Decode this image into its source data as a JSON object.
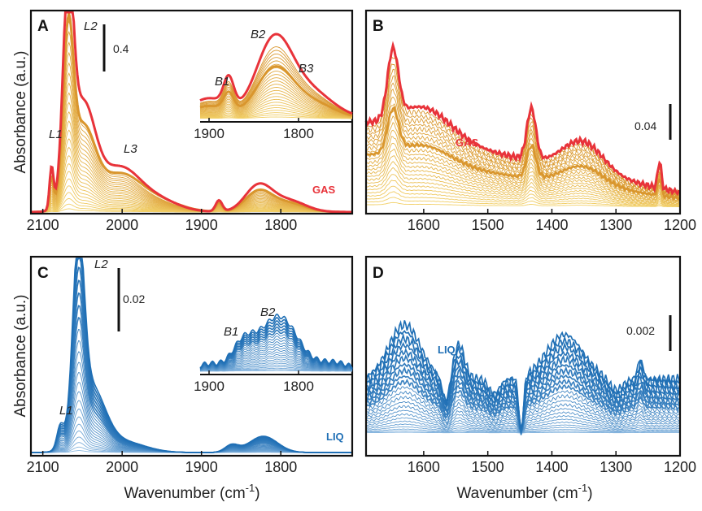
{
  "chart_data": [
    {
      "panel": "A",
      "type": "line",
      "xlabel": "",
      "ylabel": "Absorbance (a.u.)",
      "xlim": [
        2115,
        1710
      ],
      "xticks": [
        "2100",
        "2000",
        "1900",
        "1800"
      ],
      "scale_bar": "0.4",
      "tag": "GAS",
      "tag_color": "#e8333a",
      "colors": {
        "final": "#e8333a",
        "mid": "#d9962e",
        "early": "#f3d36b"
      },
      "peaks": [
        "L1",
        "L2",
        "L3"
      ],
      "main_peak_wavenumbers": {
        "L1": 2089,
        "L2": 2068,
        "L3": 2015,
        "bridge": 1828
      },
      "n_spectra": 24,
      "inset": {
        "xlim": [
          1910,
          1740
        ],
        "xticks": [
          "1900",
          "1800"
        ],
        "peaks": [
          "B1",
          "B2",
          "B3"
        ],
        "peak_wavenumbers": {
          "B1": 1878,
          "B2": 1828,
          "B3": 1790
        }
      }
    },
    {
      "panel": "B",
      "type": "line",
      "xlabel": "",
      "ylabel": "",
      "xlim": [
        1690,
        1200
      ],
      "xticks": [
        "1600",
        "1500",
        "1400",
        "1300",
        "1200"
      ],
      "scale_bar": "0.04",
      "tag": "GAS",
      "tag_color": "#e8333a",
      "peak_wavenumbers": [
        1648,
        1432,
        1352,
        1232
      ],
      "n_spectra": 24
    },
    {
      "panel": "C",
      "type": "line",
      "xlabel": "Wavenumber (cm-1)",
      "ylabel": "Absorbance (a.u.)",
      "xlim": [
        2115,
        1710
      ],
      "xticks": [
        "2100",
        "2000",
        "1900",
        "1800"
      ],
      "scale_bar": "0.02",
      "tag": "LIQ",
      "tag_color": "#1f6fb5",
      "colors": {
        "strong": "#1f6fb5",
        "light": "#9cc3e6"
      },
      "peaks": [
        "L1",
        "L2"
      ],
      "main_peak_wavenumbers": {
        "L1": 2078,
        "L2": 2055,
        "bridge": 1822
      },
      "n_spectra": 24,
      "inset": {
        "xlim": [
          1910,
          1740
        ],
        "xticks": [
          "1900",
          "1800"
        ],
        "peaks": [
          "B1",
          "B2"
        ],
        "peak_wavenumbers": {
          "B1": 1862,
          "B2": 1822
        }
      }
    },
    {
      "panel": "D",
      "type": "line",
      "xlabel": "Wavenumber (cm-1)",
      "ylabel": "",
      "xlim": [
        1690,
        1200
      ],
      "xticks": [
        "1600",
        "1500",
        "1400",
        "1300",
        "1200"
      ],
      "scale_bar": "0.002",
      "tag": "LIQ",
      "tag_color": "#1f6fb5",
      "peak_wavenumbers": [
        1630,
        1545,
        1448,
        1375,
        1262
      ],
      "n_spectra": 24
    }
  ]
}
